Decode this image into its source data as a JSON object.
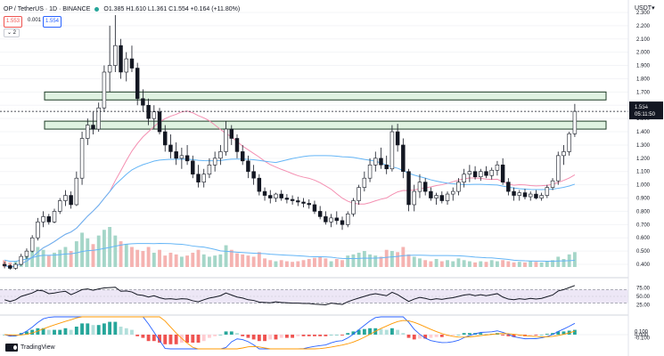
{
  "header": {
    "symbol_line": "OP / TetherUS · 1D · BINANCE",
    "ohlc": "O1.385 H1.610 L1.361 C1.554 +0.164 (+11.80%)",
    "bid": "1.553",
    "spread": "0.001",
    "ask": "1.554",
    "toggle_label": "2"
  },
  "currency_label": "USDT",
  "colors": {
    "up": "#26a69a",
    "down": "#ef5350",
    "zone_fill": "#dff2e1",
    "zone_border": "#1f3d27",
    "ma_pink": "#f48fb1",
    "ma_blue": "#64b5f6",
    "rsi_band": "#ede7f6",
    "macd_line": "#2962ff",
    "signal_line": "#ff9800"
  },
  "price_axis": [
    "2.300",
    "2.200",
    "2.100",
    "2.000",
    "1.900",
    "1.800",
    "1.700",
    "1.600",
    "1.500",
    "1.400",
    "1.300",
    "1.200",
    "1.100",
    "1.000",
    "0.900",
    "0.800",
    "0.700",
    "0.600",
    "0.500",
    "0.400"
  ],
  "price_ylim": [
    0.38,
    2.34
  ],
  "last_price_label": "1.554",
  "countdown_label": "05:11:50",
  "zones": [
    {
      "from": 1.64,
      "to": 1.7
    },
    {
      "from": 1.42,
      "to": 1.48
    }
  ],
  "rsi_axis": [
    "75.00",
    "50.00",
    "25.00"
  ],
  "macd_axis": [
    "0.100",
    "0.000",
    "-0.100"
  ],
  "logo_text": "TradingView",
  "chart_data": {
    "type": "candlestick",
    "candles": [
      [
        0.4,
        0.42,
        0.37,
        0.39
      ],
      [
        0.39,
        0.4,
        0.36,
        0.37
      ],
      [
        0.37,
        0.41,
        0.36,
        0.4
      ],
      [
        0.4,
        0.48,
        0.39,
        0.46
      ],
      [
        0.46,
        0.52,
        0.44,
        0.5
      ],
      [
        0.5,
        0.62,
        0.49,
        0.6
      ],
      [
        0.6,
        0.75,
        0.58,
        0.72
      ],
      [
        0.72,
        0.8,
        0.68,
        0.76
      ],
      [
        0.76,
        0.78,
        0.7,
        0.72
      ],
      [
        0.72,
        0.82,
        0.71,
        0.8
      ],
      [
        0.8,
        0.9,
        0.78,
        0.88
      ],
      [
        0.88,
        0.96,
        0.84,
        0.92
      ],
      [
        0.92,
        0.95,
        0.82,
        0.85
      ],
      [
        0.85,
        1.1,
        0.84,
        1.05
      ],
      [
        1.05,
        1.4,
        1.0,
        1.35
      ],
      [
        1.35,
        1.5,
        1.3,
        1.45
      ],
      [
        1.45,
        1.55,
        1.38,
        1.42
      ],
      [
        1.42,
        1.62,
        1.4,
        1.58
      ],
      [
        1.58,
        1.9,
        1.55,
        1.85
      ],
      [
        1.85,
        2.2,
        1.7,
        1.9
      ],
      [
        1.9,
        2.28,
        1.85,
        2.05
      ],
      [
        2.05,
        2.1,
        1.8,
        1.85
      ],
      [
        1.85,
        2.0,
        1.78,
        1.95
      ],
      [
        1.95,
        2.05,
        1.85,
        1.88
      ],
      [
        1.88,
        1.92,
        1.6,
        1.65
      ],
      [
        1.65,
        1.72,
        1.55,
        1.6
      ],
      [
        1.6,
        1.65,
        1.45,
        1.5
      ],
      [
        1.5,
        1.6,
        1.42,
        1.55
      ],
      [
        1.55,
        1.58,
        1.38,
        1.4
      ],
      [
        1.4,
        1.45,
        1.25,
        1.3
      ],
      [
        1.3,
        1.38,
        1.2,
        1.25
      ],
      [
        1.25,
        1.32,
        1.15,
        1.2
      ],
      [
        1.2,
        1.28,
        1.12,
        1.22
      ],
      [
        1.22,
        1.3,
        1.15,
        1.18
      ],
      [
        1.18,
        1.22,
        1.05,
        1.08
      ],
      [
        1.08,
        1.15,
        0.98,
        1.02
      ],
      [
        1.02,
        1.12,
        0.98,
        1.08
      ],
      [
        1.08,
        1.2,
        1.05,
        1.15
      ],
      [
        1.15,
        1.25,
        1.1,
        1.2
      ],
      [
        1.2,
        1.3,
        1.15,
        1.25
      ],
      [
        1.25,
        1.48,
        1.22,
        1.42
      ],
      [
        1.42,
        1.45,
        1.3,
        1.35
      ],
      [
        1.35,
        1.38,
        1.2,
        1.25
      ],
      [
        1.25,
        1.3,
        1.15,
        1.18
      ],
      [
        1.18,
        1.22,
        1.05,
        1.1
      ],
      [
        1.1,
        1.15,
        1.0,
        1.05
      ],
      [
        1.05,
        1.08,
        0.92,
        0.95
      ],
      [
        0.95,
        0.98,
        0.88,
        0.92
      ],
      [
        0.92,
        0.96,
        0.86,
        0.9
      ],
      [
        0.9,
        0.94,
        0.87,
        0.93
      ],
      [
        0.93,
        0.96,
        0.88,
        0.9
      ],
      [
        0.9,
        0.93,
        0.86,
        0.89
      ],
      [
        0.89,
        0.92,
        0.85,
        0.88
      ],
      [
        0.88,
        0.91,
        0.84,
        0.87
      ],
      [
        0.87,
        0.9,
        0.83,
        0.86
      ],
      [
        0.86,
        0.89,
        0.82,
        0.85
      ],
      [
        0.85,
        0.88,
        0.78,
        0.8
      ],
      [
        0.8,
        0.84,
        0.74,
        0.76
      ],
      [
        0.76,
        0.8,
        0.7,
        0.72
      ],
      [
        0.72,
        0.78,
        0.68,
        0.75
      ],
      [
        0.75,
        0.8,
        0.7,
        0.73
      ],
      [
        0.73,
        0.76,
        0.66,
        0.7
      ],
      [
        0.7,
        0.8,
        0.68,
        0.78
      ],
      [
        0.78,
        0.9,
        0.76,
        0.88
      ],
      [
        0.88,
        1.0,
        0.85,
        0.98
      ],
      [
        0.98,
        1.1,
        0.95,
        1.05
      ],
      [
        1.05,
        1.2,
        1.02,
        1.15
      ],
      [
        1.15,
        1.25,
        1.1,
        1.2
      ],
      [
        1.2,
        1.28,
        1.12,
        1.15
      ],
      [
        1.15,
        1.22,
        1.08,
        1.12
      ],
      [
        1.12,
        1.45,
        1.1,
        1.4
      ],
      [
        1.4,
        1.46,
        1.25,
        1.3
      ],
      [
        1.3,
        1.35,
        1.05,
        1.1
      ],
      [
        1.1,
        1.12,
        0.8,
        0.85
      ],
      [
        0.85,
        1.0,
        0.8,
        0.95
      ],
      [
        0.95,
        1.08,
        0.9,
        1.02
      ],
      [
        1.02,
        1.05,
        0.92,
        0.95
      ],
      [
        0.95,
        0.98,
        0.88,
        0.9
      ],
      [
        0.9,
        0.94,
        0.85,
        0.92
      ],
      [
        0.92,
        0.95,
        0.86,
        0.88
      ],
      [
        0.88,
        0.95,
        0.85,
        0.93
      ],
      [
        0.93,
        0.98,
        0.88,
        0.95
      ],
      [
        0.95,
        1.05,
        0.92,
        1.02
      ],
      [
        1.02,
        1.12,
        0.98,
        1.08
      ],
      [
        1.08,
        1.15,
        1.02,
        1.1
      ],
      [
        1.1,
        1.14,
        1.04,
        1.06
      ],
      [
        1.06,
        1.12,
        1.03,
        1.1
      ],
      [
        1.1,
        1.14,
        1.05,
        1.07
      ],
      [
        1.07,
        1.13,
        1.04,
        1.11
      ],
      [
        1.11,
        1.18,
        1.07,
        1.15
      ],
      [
        1.15,
        1.2,
        1.0,
        1.02
      ],
      [
        1.02,
        1.05,
        0.92,
        0.95
      ],
      [
        0.95,
        0.98,
        0.88,
        0.92
      ],
      [
        0.92,
        0.96,
        0.88,
        0.94
      ],
      [
        0.94,
        0.97,
        0.89,
        0.91
      ],
      [
        0.91,
        0.95,
        0.88,
        0.93
      ],
      [
        0.93,
        0.96,
        0.89,
        0.9
      ],
      [
        0.9,
        0.94,
        0.88,
        0.92
      ],
      [
        0.92,
        1.0,
        0.9,
        0.98
      ],
      [
        0.98,
        1.05,
        0.96,
        1.03
      ],
      [
        1.03,
        1.25,
        1.0,
        1.22
      ],
      [
        1.22,
        1.3,
        1.15,
        1.25
      ],
      [
        1.25,
        1.4,
        1.22,
        1.385
      ],
      [
        1.385,
        1.61,
        1.361,
        1.554
      ]
    ],
    "volume": [
      12,
      8,
      10,
      18,
      22,
      28,
      35,
      30,
      20,
      25,
      30,
      35,
      28,
      45,
      60,
      50,
      40,
      55,
      65,
      70,
      55,
      45,
      40,
      35,
      30,
      28,
      35,
      25,
      30,
      20,
      25,
      22,
      18,
      20,
      25,
      30,
      22,
      18,
      20,
      22,
      38,
      30,
      24,
      22,
      20,
      18,
      26,
      15,
      12,
      10,
      12,
      10,
      9,
      10,
      12,
      14,
      16,
      18,
      15,
      10,
      14,
      12,
      20,
      22,
      25,
      28,
      22,
      20,
      18,
      30,
      28,
      26,
      35,
      22,
      18,
      15,
      12,
      10,
      14,
      10,
      12,
      10,
      15,
      12,
      10,
      8,
      10,
      9,
      12,
      10,
      12,
      10,
      8,
      9,
      8,
      10,
      9,
      8,
      10,
      12,
      18,
      14,
      22,
      26
    ],
    "rsi": [
      40,
      35,
      40,
      50,
      55,
      60,
      68,
      66,
      58,
      60,
      63,
      65,
      55,
      62,
      70,
      72,
      68,
      72,
      75,
      76,
      77,
      65,
      66,
      63,
      55,
      53,
      48,
      52,
      46,
      42,
      43,
      41,
      43,
      42,
      37,
      34,
      40,
      45,
      48,
      52,
      60,
      54,
      48,
      45,
      40,
      38,
      33,
      32,
      31,
      34,
      32,
      31,
      30,
      30,
      29,
      29,
      27,
      26,
      25,
      30,
      28,
      26,
      34,
      40,
      45,
      50,
      55,
      58,
      55,
      52,
      62,
      55,
      45,
      35,
      42,
      47,
      44,
      40,
      43,
      41,
      44,
      46,
      50,
      54,
      56,
      52,
      55,
      52,
      55,
      58,
      48,
      42,
      40,
      43,
      41,
      44,
      42,
      44,
      49,
      54,
      66,
      70,
      76,
      82
    ],
    "macd_hist": [
      0,
      -0.01,
      0,
      0.01,
      0.02,
      0.03,
      0.04,
      0.04,
      0.03,
      0.03,
      0.03,
      0.04,
      0.03,
      0.05,
      0.07,
      0.07,
      0.06,
      0.06,
      0.07,
      0.08,
      0.08,
      0.05,
      0.04,
      0.03,
      -0.01,
      -0.02,
      -0.04,
      -0.04,
      -0.05,
      -0.06,
      -0.06,
      -0.06,
      -0.05,
      -0.05,
      -0.05,
      -0.05,
      -0.04,
      -0.02,
      -0.01,
      0,
      0.02,
      0.02,
      0.01,
      -0.01,
      -0.02,
      -0.03,
      -0.04,
      -0.04,
      -0.03,
      -0.03,
      -0.02,
      -0.02,
      -0.02,
      -0.01,
      -0.01,
      -0.01,
      -0.01,
      -0.01,
      -0.01,
      0,
      0,
      -0.005,
      0.01,
      0.02,
      0.03,
      0.035,
      0.04,
      0.04,
      0.035,
      0.03,
      0.04,
      0.03,
      0.01,
      -0.02,
      -0.03,
      -0.025,
      -0.025,
      -0.02,
      -0.015,
      -0.015,
      -0.01,
      -0.005,
      0,
      0.01,
      0.01,
      0.01,
      0.01,
      0.005,
      0.005,
      0.01,
      -0.005,
      -0.01,
      -0.015,
      -0.01,
      -0.01,
      -0.005,
      -0.005,
      0,
      0.005,
      0.01,
      0.02,
      0.02,
      0.025,
      0.03
    ]
  }
}
